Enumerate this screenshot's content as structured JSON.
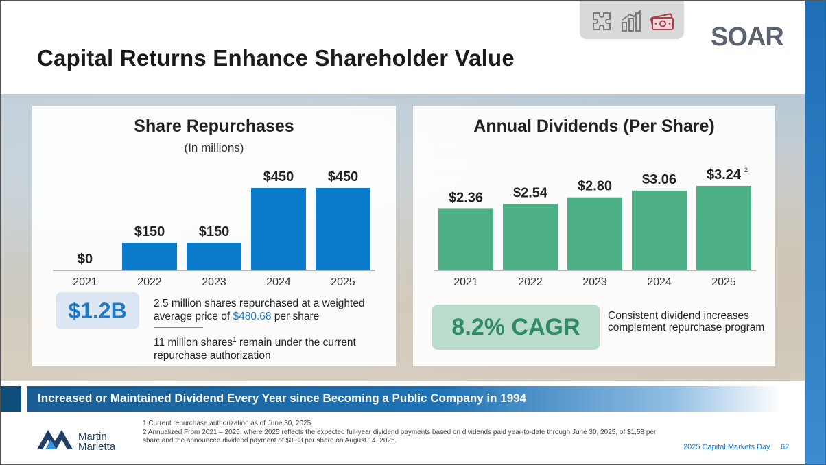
{
  "slide": {
    "title": "Capital Returns Enhance Shareholder Value",
    "banner": "Increased or Maintained Dividend Every Year since Becoming a Public Company in 1994",
    "event": "2025 Capital Markets Day",
    "page_number": "62",
    "logo_soar": "SOAR",
    "logo_mm_line1": "Martin",
    "logo_mm_line2": "Marietta",
    "icons": [
      "puzzle-icon",
      "bar-chart-icon",
      "money-icon"
    ]
  },
  "colors": {
    "repurchase_bar": "#0b7bcb",
    "dividend_bar": "#4caf86",
    "accent_blue": "#1b79c8"
  },
  "repurchases": {
    "badge": "$1.2B",
    "note1_pre": "2.5 million shares repurchased at a weighted average price of ",
    "note1_value": "$480.68",
    "note1_post": " per share",
    "note2_pre": "11 million shares",
    "note2_sup": "1",
    "note2_post": " remain under the current repurchase authorization"
  },
  "dividends": {
    "badge": "8.2% CAGR",
    "note": "Consistent dividend increases complement repurchase program"
  },
  "chart_data": [
    {
      "type": "bar",
      "title": "Share Repurchases",
      "subtitle": "(In millions)",
      "categories": [
        "2021",
        "2022",
        "2023",
        "2024",
        "2025"
      ],
      "values": [
        0,
        150,
        150,
        450,
        450
      ],
      "labels": [
        "$0",
        "$150",
        "$150",
        "$450",
        "$450"
      ],
      "ylim": [
        0,
        450
      ],
      "xlabel": "",
      "ylabel": ""
    },
    {
      "type": "bar",
      "title": "Annual Dividends (Per Share)",
      "categories": [
        "2021",
        "2022",
        "2023",
        "2024",
        "2025"
      ],
      "values": [
        2.36,
        2.54,
        2.8,
        3.06,
        3.24
      ],
      "labels": [
        "$2.36",
        "$2.54",
        "$2.80",
        "$3.06",
        "$3.24"
      ],
      "label_superscripts": [
        "",
        "",
        "",
        "",
        "2"
      ],
      "ylim": [
        0,
        3.24
      ],
      "xlabel": "",
      "ylabel": ""
    }
  ],
  "footnotes": [
    "1  Current repurchase authorization as of June 30, 2025",
    "2  Annualized From 2021 – 2025, where 2025 reflects the expected full-year dividend payments based on dividends paid year-to-date through June 30, 2025, of $1.58 per share and the announced dividend payment of $0.83 per share on August 14, 2025."
  ]
}
